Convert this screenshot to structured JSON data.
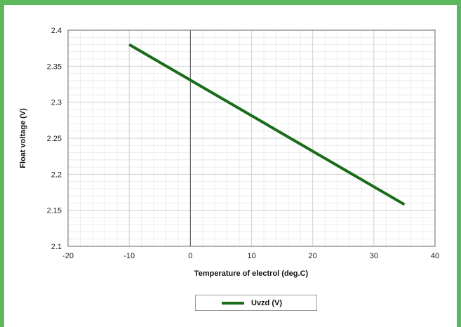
{
  "chart_data": {
    "type": "line",
    "xlabel": "Temperature of electrol (deg.C)",
    "ylabel": "Float voltage (V)",
    "xlim": [
      -20,
      40
    ],
    "ylim": [
      2.1,
      2.4
    ],
    "xticks": [
      "-20",
      "-10",
      "0",
      "10",
      "20",
      "30",
      "40"
    ],
    "yticks": [
      "2.1",
      "2.15",
      "2.2",
      "2.25",
      "2.3",
      "2.35",
      "2.4"
    ],
    "grid": true,
    "legend_position": "bottom-center",
    "series": [
      {
        "name": "Uvzd (V)",
        "color": "#1a6b1a",
        "x": [
          -10,
          35
        ],
        "y": [
          2.38,
          2.158
        ]
      }
    ]
  }
}
